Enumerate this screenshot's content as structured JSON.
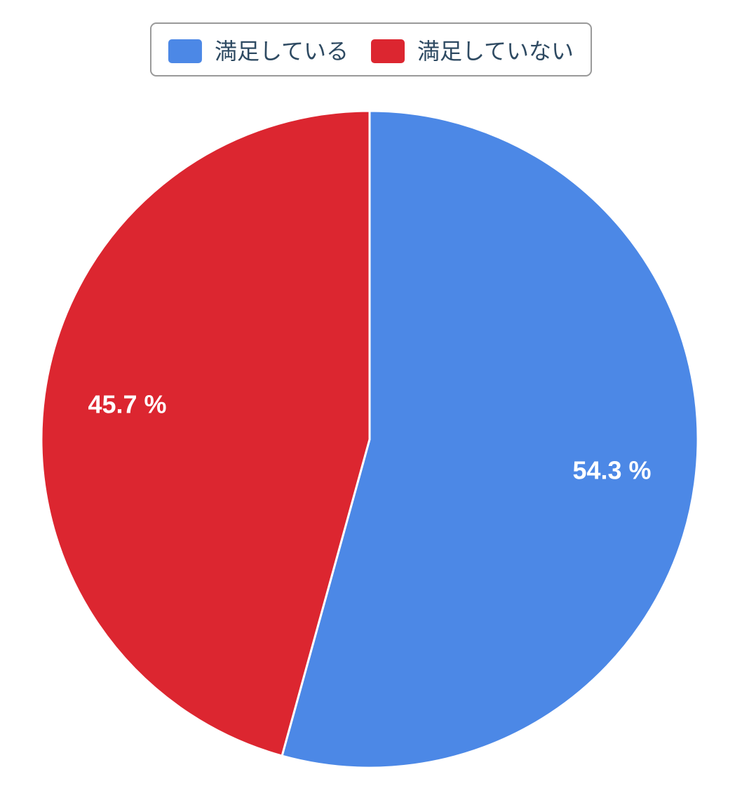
{
  "chart_data": {
    "type": "pie",
    "categories": [
      "満足している",
      "満足していない"
    ],
    "values": [
      54.3,
      45.7
    ],
    "value_labels": [
      "54.3 %",
      "45.7 %"
    ],
    "colors": [
      "#4c88e6",
      "#dc2630"
    ],
    "legend": "top"
  }
}
